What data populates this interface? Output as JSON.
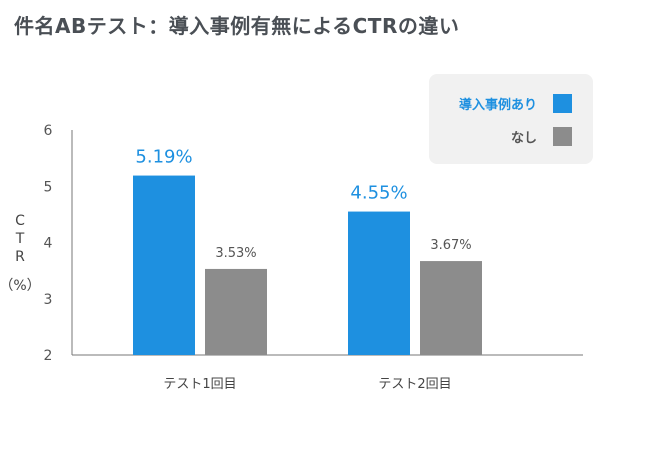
{
  "chart_data": {
    "type": "bar",
    "title": "件名ABテスト：導入事例有無によるCTRの違い",
    "ylabel": [
      "C",
      "T",
      "R",
      "（%）"
    ],
    "ylim": [
      2,
      6
    ],
    "yticks": [
      "2",
      "3",
      "4",
      "5",
      "6"
    ],
    "grid": false,
    "legend_position": "top-right",
    "categories": [
      "テスト1回目",
      "テスト2回目"
    ],
    "series": [
      {
        "name": "導入事例あり",
        "color": "#1e90e0",
        "values": [
          5.19,
          4.55
        ],
        "labels": [
          "5.19%",
          "4.55%"
        ]
      },
      {
        "name": "なし",
        "color": "#8c8c8c",
        "values": [
          3.53,
          3.67
        ],
        "labels": [
          "3.53%",
          "3.67%"
        ]
      }
    ]
  }
}
